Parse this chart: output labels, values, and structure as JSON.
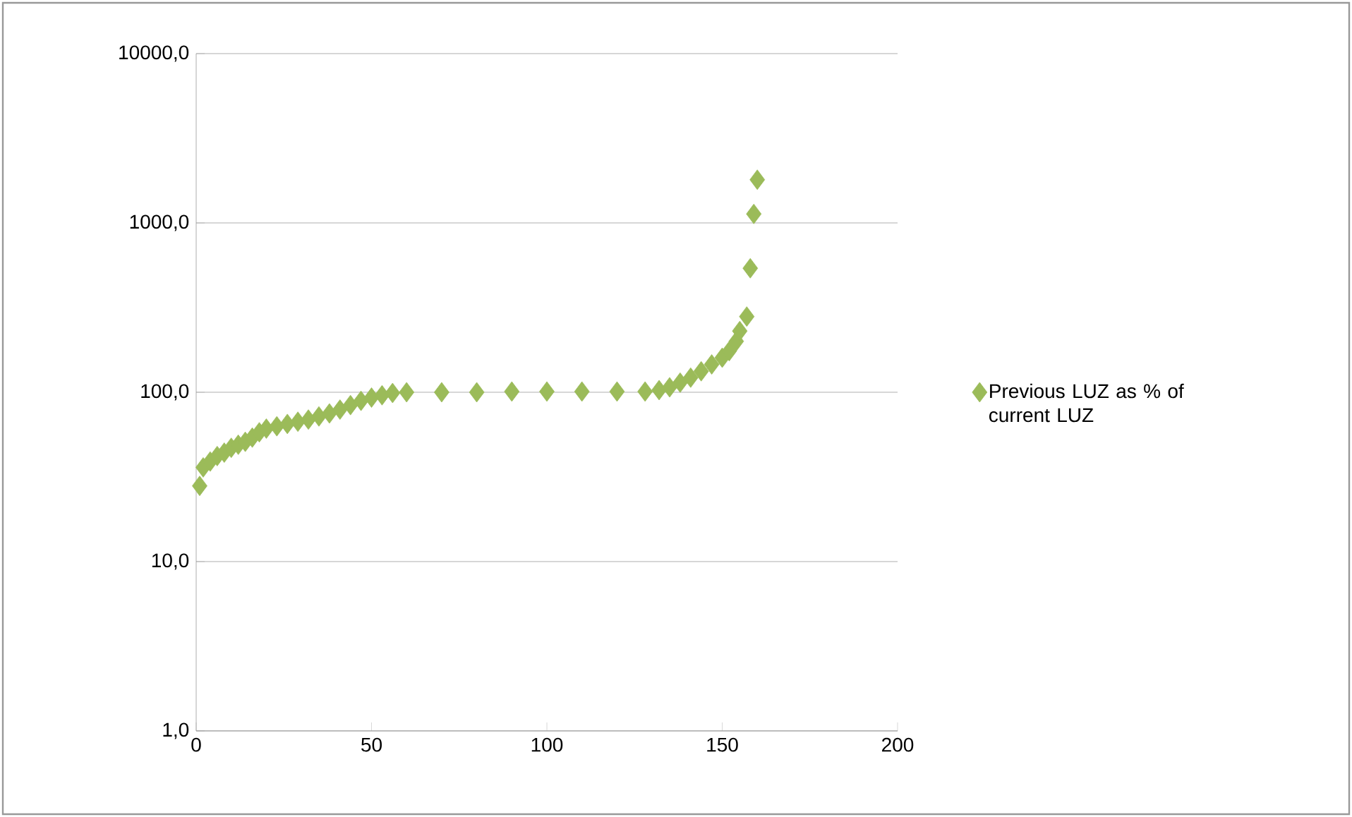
{
  "chart_data": {
    "type": "scatter",
    "marker": "diamond",
    "log": "y",
    "grid": "y",
    "legend": "right",
    "xlim": [
      0,
      200
    ],
    "xticks": [
      0,
      50,
      100,
      150,
      200
    ],
    "ylim": [
      1,
      10000
    ],
    "yticks": [
      {
        "value": 1,
        "label": "1,0"
      },
      {
        "value": 10,
        "label": "10,0"
      },
      {
        "value": 100,
        "label": "100,0"
      },
      {
        "value": 1000,
        "label": "1000,0"
      },
      {
        "value": 10000,
        "label": "10000,0"
      }
    ],
    "series": [
      {
        "name": "Previous LUZ as % of current LUZ",
        "color": "#9bbb59",
        "x": [
          1,
          2,
          4,
          6,
          8,
          10,
          12,
          14,
          16,
          18,
          20,
          23,
          26,
          29,
          32,
          35,
          38,
          41,
          44,
          47,
          50,
          53,
          56,
          60,
          70,
          80,
          90,
          100,
          110,
          120,
          128,
          132,
          135,
          138,
          141,
          144,
          147,
          150,
          152,
          154,
          155,
          157,
          158,
          159,
          160
        ],
        "values": [
          28,
          36,
          39,
          42,
          44,
          47,
          49,
          51,
          54,
          58,
          61,
          63,
          65,
          67,
          69,
          72,
          75,
          79,
          84,
          89,
          93,
          96,
          99,
          100,
          100,
          100,
          101,
          101,
          101,
          101,
          101,
          103,
          107,
          114,
          122,
          133,
          146,
          160,
          175,
          200,
          230,
          280,
          540,
          1130,
          1800
        ]
      }
    ]
  }
}
